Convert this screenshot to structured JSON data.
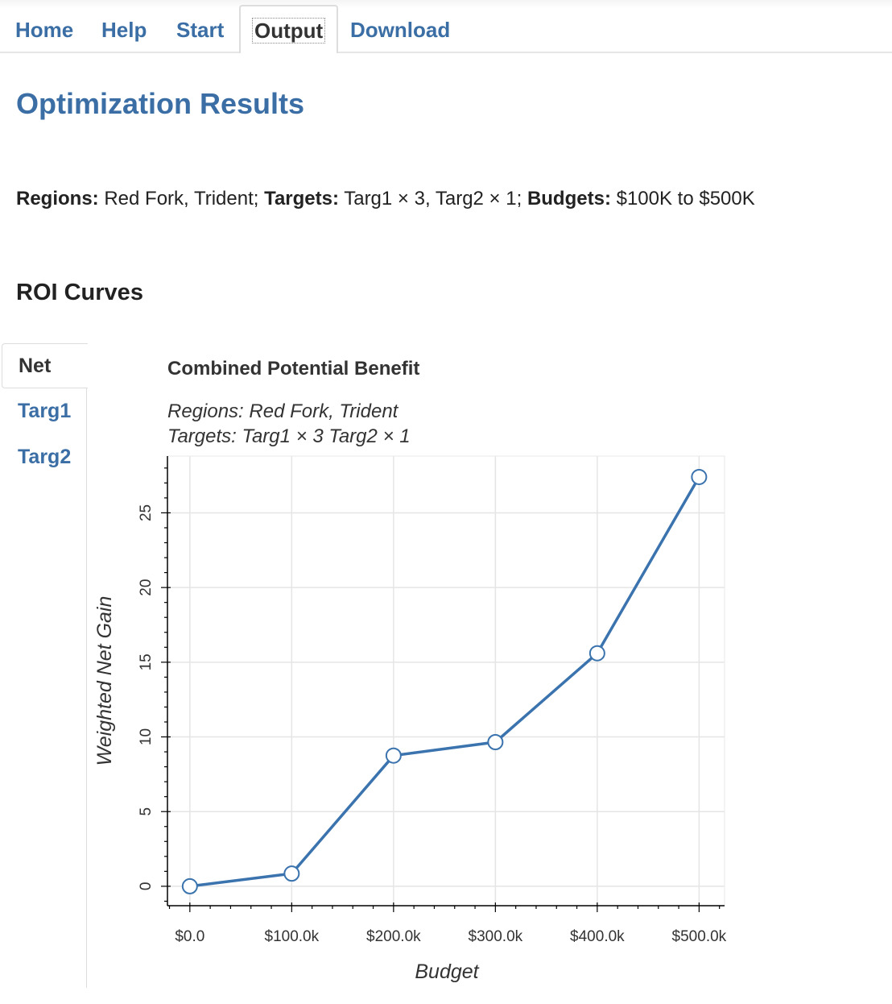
{
  "nav": {
    "items": [
      "Home",
      "Help",
      "Start",
      "Output",
      "Download"
    ],
    "active": "Output"
  },
  "page_title": "Optimization Results",
  "summary": {
    "regions_label": "Regions:",
    "regions_value": " Red Fork, Trident; ",
    "targets_label": "Targets:",
    "targets_value": " Targ1 × 3, Targ2 × 1; ",
    "budgets_label": "Budgets:",
    "budgets_value": " $100K to $500K"
  },
  "section_title": "ROI Curves",
  "side_tabs": {
    "items": [
      "Net",
      "Targ1",
      "Targ2"
    ],
    "active": "Net"
  },
  "colors": {
    "link": "#3a6ea5",
    "line": "#3a73ad",
    "grid": "#e5e5e5"
  },
  "chart_data": {
    "type": "line",
    "title": "Combined Potential Benefit",
    "subtitle_lines": [
      "Regions: Red Fork, Trident",
      "Targets: Targ1 × 3 Targ2 × 1"
    ],
    "xlabel": "Budget",
    "ylabel": "Weighted Net Gain",
    "x": [
      0,
      100000,
      200000,
      300000,
      400000,
      500000
    ],
    "x_tick_labels": [
      "$0.0",
      "$100.0k",
      "$200.0k",
      "$300.0k",
      "$400.0k",
      "$500.0k"
    ],
    "y": [
      0.0,
      0.85,
      8.75,
      9.65,
      15.6,
      27.4
    ],
    "y_ticks": [
      0,
      5,
      10,
      15,
      20,
      25
    ],
    "xlim": [
      -22000,
      525000
    ],
    "ylim": [
      -1.3,
      28.8
    ],
    "grid": true,
    "markers": "open-circle"
  }
}
